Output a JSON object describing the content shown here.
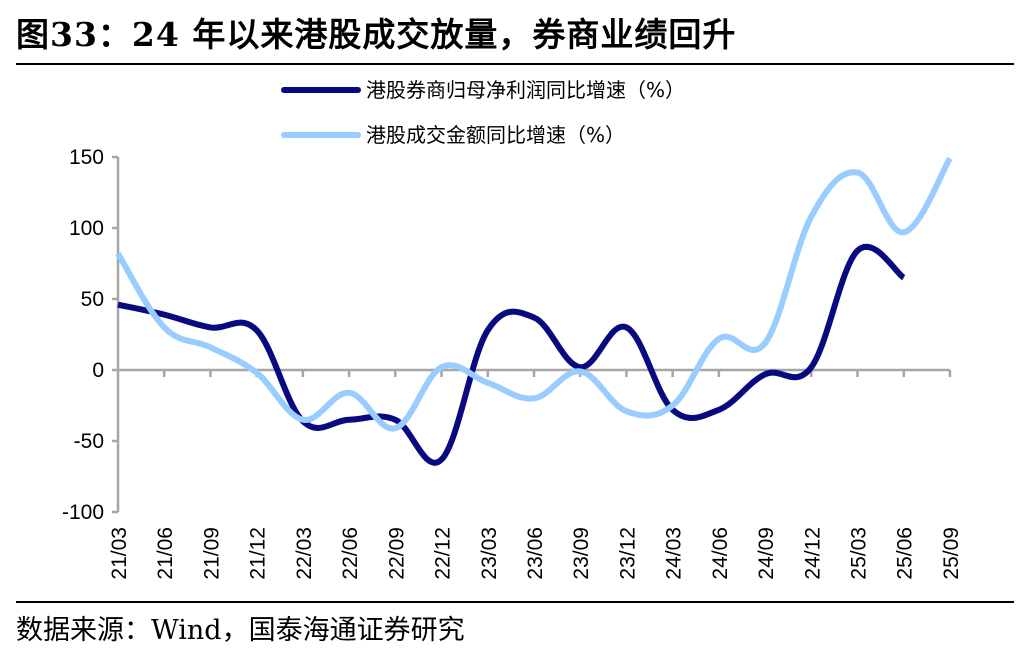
{
  "title": "图33：24 年以来港股成交放量，券商业绩回升",
  "source": "数据来源：Wind，国泰海通证券研究",
  "chart_data": {
    "type": "line",
    "title": "图33：24 年以来港股成交放量，券商业绩回升",
    "xlabel": "",
    "ylabel": "",
    "ylim": [
      -100,
      150
    ],
    "yticks": [
      -100,
      -50,
      0,
      50,
      100,
      150
    ],
    "ytick_labels": [
      "-100",
      "-50",
      "0",
      "50",
      "100",
      "150"
    ],
    "categories": [
      "21/03",
      "21/06",
      "21/09",
      "21/12",
      "22/03",
      "22/06",
      "22/09",
      "22/12",
      "23/03",
      "23/06",
      "23/09",
      "23/12",
      "24/03",
      "24/06",
      "24/09",
      "24/12",
      "25/03",
      "25/06",
      "25/09"
    ],
    "legend_position": "top-center",
    "grid": false,
    "series": [
      {
        "name": "港股券商归母净利润同比增速（%）",
        "color": "#0a0a80",
        "values": [
          46,
          39,
          30,
          28,
          -36,
          -35,
          -35,
          -63,
          28,
          37,
          2,
          30,
          -28,
          -28,
          -3,
          2,
          84,
          65,
          null
        ]
      },
      {
        "name": "港股成交金额同比增速（%）",
        "color": "#99ccff",
        "values": [
          82,
          30,
          16,
          -2,
          -35,
          -16,
          -41,
          2,
          -9,
          -20,
          -1,
          -29,
          -25,
          22,
          19,
          108,
          139,
          97,
          149
        ]
      }
    ]
  }
}
